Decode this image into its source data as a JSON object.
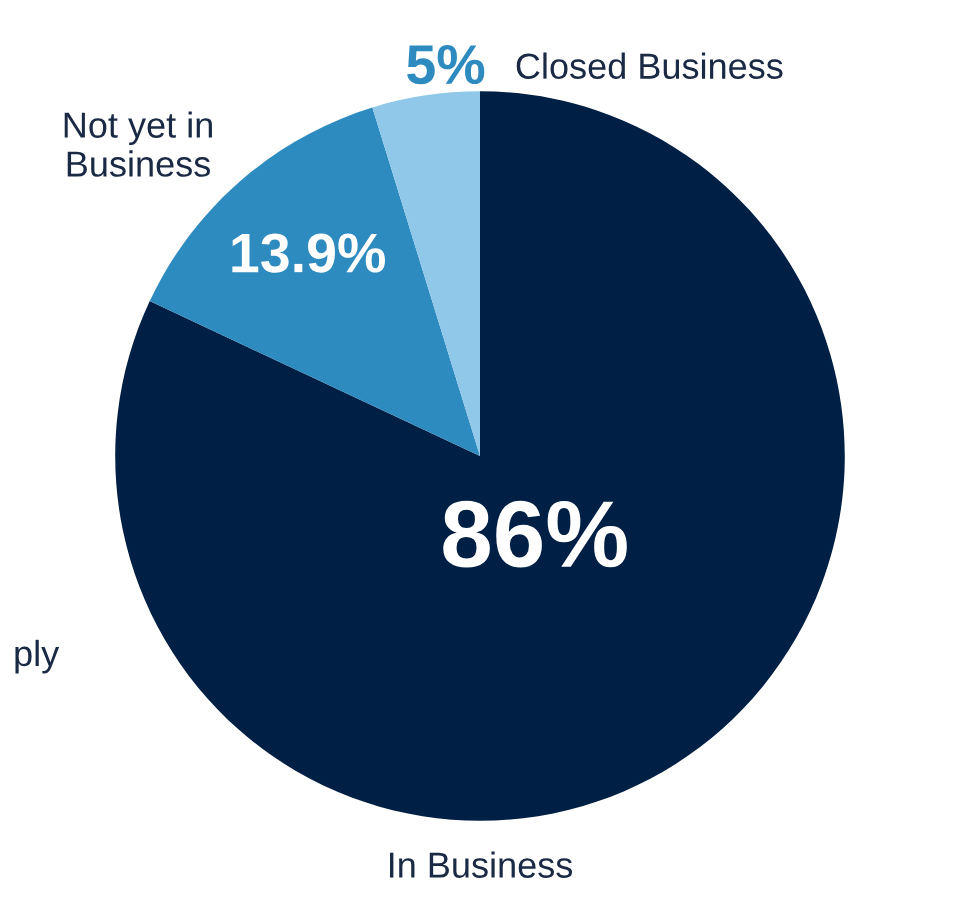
{
  "chart_data": {
    "type": "pie",
    "categories": [
      "In Business",
      "Not yet in\nBusiness",
      "Closed Business"
    ],
    "values": [
      86,
      13.9,
      5
    ],
    "value_labels": [
      "86%",
      "13.9%",
      "5%"
    ],
    "colors": [
      "#001f45",
      "#2e8bc0",
      "#8fc8e8"
    ],
    "annotations": [
      "ply"
    ],
    "legend": false
  }
}
